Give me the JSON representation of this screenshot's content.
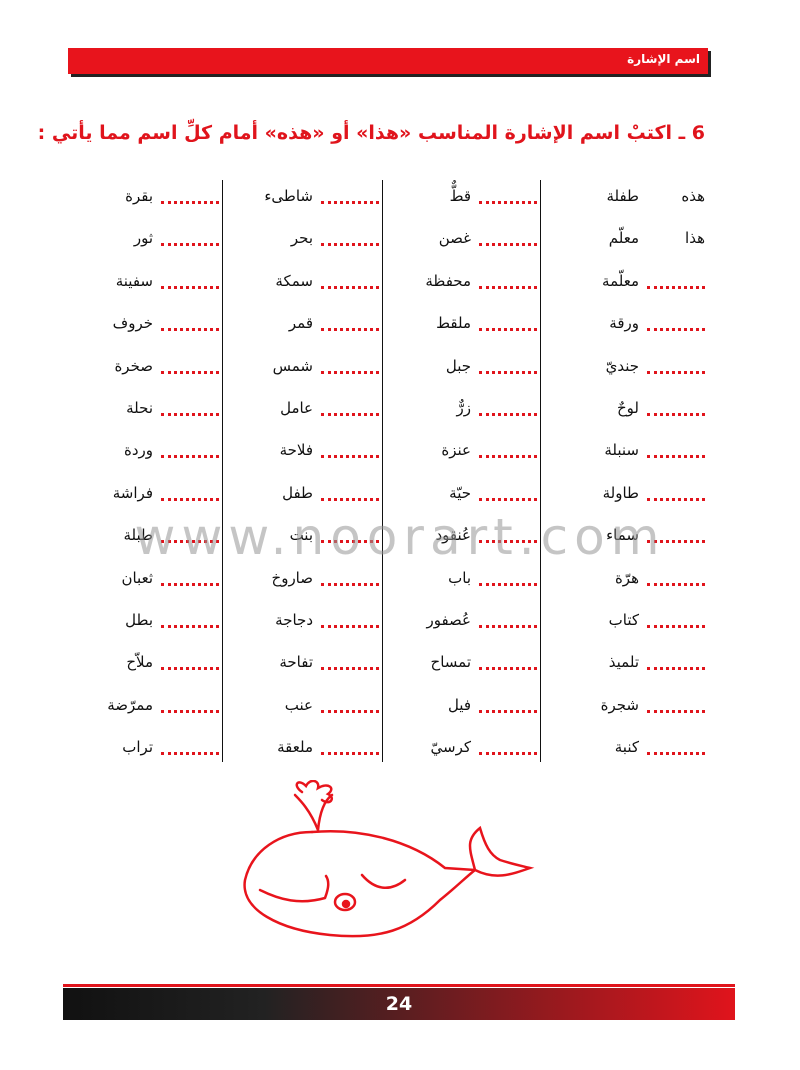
{
  "header": {
    "title": "اسم الإشارة"
  },
  "instruction": "6 ـ اكتبْ اسم الإشارة المناسب «هذا» أو «هذه» أمام كلِّ اسم مما يأتي :",
  "table": {
    "columns": [
      {
        "words": [
          "طفلة",
          "معلّم",
          "معلّمة",
          "ورقة",
          "جنديّ",
          "لوحٌ",
          "سنبلة",
          "طاولة",
          "سماء",
          "هرّة",
          "كتاب",
          "تلميذ",
          "شجرة",
          "كنبة"
        ],
        "answers": [
          "هذه",
          "هذا"
        ]
      },
      {
        "words": [
          "قطٌّ",
          "غصن",
          "محفظة",
          "ملقط",
          "جبل",
          "زرٌّ",
          "عنزة",
          "حيّة",
          "عُنقود",
          "باب",
          "عُصفور",
          "تمساح",
          "فيل",
          "كرسيّ"
        ]
      },
      {
        "words": [
          "شاطىء",
          "بحر",
          "سمكة",
          "قمر",
          "شمس",
          "عامل",
          "فلاحة",
          "طفل",
          "بنت",
          "صاروخ",
          "دجاجة",
          "تفاحة",
          "عنب",
          "ملعقة"
        ]
      },
      {
        "words": [
          "بقرة",
          "ثور",
          "سفينة",
          "خروف",
          "صخرة",
          "نحلة",
          "وردة",
          "فراشة",
          "طبلة",
          "ثعبان",
          "بطل",
          "ملاّح",
          "ممرّضة",
          "تراب"
        ]
      }
    ]
  },
  "watermark": "www.noorart.com",
  "footer": {
    "page_number": "24"
  }
}
